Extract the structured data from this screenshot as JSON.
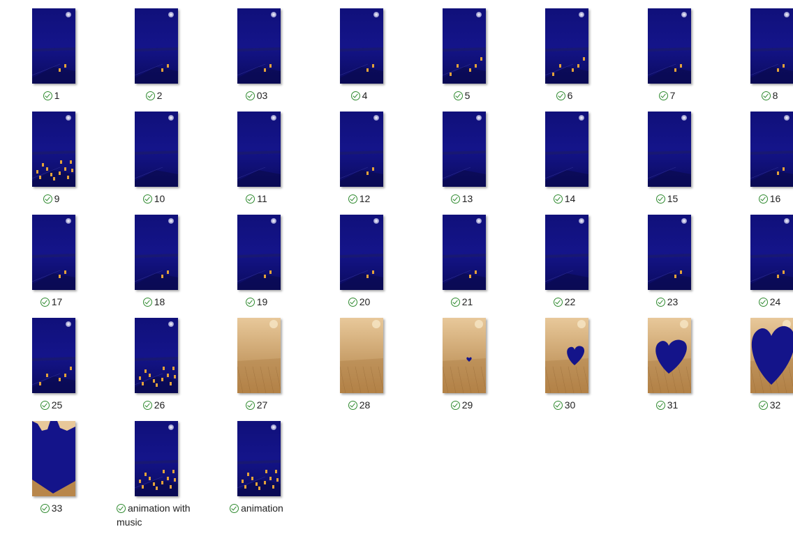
{
  "colors": {
    "night_blue": "#14148a",
    "night_blue_dark": "#0b0b5e",
    "window_orange": "#e2a23a",
    "sepia_light": "#e8c89a",
    "sepia_dark": "#b8864a",
    "sync_green": "#2f8a2f"
  },
  "files": [
    {
      "name": "1",
      "status_icon": "sync-check-icon",
      "thumb": "night",
      "lights": 1
    },
    {
      "name": "2",
      "status_icon": "sync-check-icon",
      "thumb": "night",
      "lights": 1
    },
    {
      "name": "03",
      "status_icon": "sync-check-icon",
      "thumb": "night",
      "lights": 1
    },
    {
      "name": "4",
      "status_icon": "sync-check-icon",
      "thumb": "night",
      "lights": 1
    },
    {
      "name": "5",
      "status_icon": "sync-check-icon",
      "thumb": "night",
      "lights": 2
    },
    {
      "name": "6",
      "status_icon": "sync-check-icon",
      "thumb": "night",
      "lights": 2
    },
    {
      "name": "7",
      "status_icon": "sync-check-icon",
      "thumb": "night",
      "lights": 1
    },
    {
      "name": "8",
      "status_icon": "sync-check-icon",
      "thumb": "night",
      "lights": 1
    },
    {
      "name": "9",
      "status_icon": "sync-check-icon",
      "thumb": "night",
      "lights": 3
    },
    {
      "name": "10",
      "status_icon": "sync-check-icon",
      "thumb": "night",
      "lights": 0
    },
    {
      "name": "11",
      "status_icon": "sync-check-icon",
      "thumb": "night",
      "lights": 0
    },
    {
      "name": "12",
      "status_icon": "sync-check-icon",
      "thumb": "night",
      "lights": 1
    },
    {
      "name": "13",
      "status_icon": "sync-check-icon",
      "thumb": "night",
      "lights": 0
    },
    {
      "name": "14",
      "status_icon": "sync-check-icon",
      "thumb": "night",
      "lights": 0
    },
    {
      "name": "15",
      "status_icon": "sync-check-icon",
      "thumb": "night",
      "lights": 0
    },
    {
      "name": "16",
      "status_icon": "sync-check-icon",
      "thumb": "night",
      "lights": 1
    },
    {
      "name": "17",
      "status_icon": "sync-check-icon",
      "thumb": "night",
      "lights": 1
    },
    {
      "name": "18",
      "status_icon": "sync-check-icon",
      "thumb": "night",
      "lights": 1
    },
    {
      "name": "19",
      "status_icon": "sync-check-icon",
      "thumb": "night",
      "lights": 1
    },
    {
      "name": "20",
      "status_icon": "sync-check-icon",
      "thumb": "night",
      "lights": 1
    },
    {
      "name": "21",
      "status_icon": "sync-check-icon",
      "thumb": "night",
      "lights": 1
    },
    {
      "name": "22",
      "status_icon": "sync-check-icon",
      "thumb": "night",
      "lights": 0
    },
    {
      "name": "23",
      "status_icon": "sync-check-icon",
      "thumb": "night",
      "lights": 1
    },
    {
      "name": "24",
      "status_icon": "sync-check-icon",
      "thumb": "night",
      "lights": 1
    },
    {
      "name": "25",
      "status_icon": "sync-check-icon",
      "thumb": "night",
      "lights": 2
    },
    {
      "name": "26",
      "status_icon": "sync-check-icon",
      "thumb": "night",
      "lights": 3
    },
    {
      "name": "27",
      "status_icon": "sync-check-icon",
      "thumb": "sepia",
      "heart": 0
    },
    {
      "name": "28",
      "status_icon": "sync-check-icon",
      "thumb": "sepia",
      "heart": 0
    },
    {
      "name": "29",
      "status_icon": "sync-check-icon",
      "thumb": "sepia",
      "heart": 1
    },
    {
      "name": "30",
      "status_icon": "sync-check-icon",
      "thumb": "sepia",
      "heart": 2
    },
    {
      "name": "31",
      "status_icon": "sync-check-icon",
      "thumb": "sepia",
      "heart": 3
    },
    {
      "name": "32",
      "status_icon": "sync-check-icon",
      "thumb": "sepia",
      "heart": 4
    },
    {
      "name": "33",
      "status_icon": "sync-check-icon",
      "thumb": "sepia",
      "heart": 5
    },
    {
      "name": "animation with music",
      "status_icon": "sync-check-icon",
      "thumb": "night",
      "lights": 3
    },
    {
      "name": "animation",
      "status_icon": "sync-check-icon",
      "thumb": "night",
      "lights": 3
    }
  ]
}
